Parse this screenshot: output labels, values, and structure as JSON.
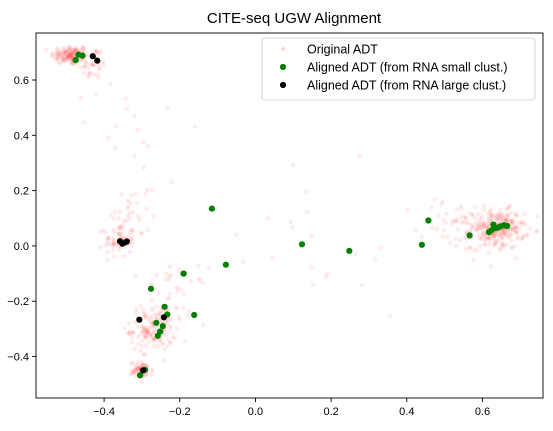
{
  "chart_data": {
    "type": "scatter",
    "title": "CITE-seq UGW Alignment",
    "xlabel": "",
    "ylabel": "",
    "xlim": [
      -0.58,
      0.76
    ],
    "ylim": [
      -0.55,
      0.77
    ],
    "xticks": [
      -0.4,
      -0.2,
      0.0,
      0.2,
      0.4,
      0.6
    ],
    "xtick_labels": [
      "−0.4",
      "−0.2",
      "0.0",
      "0.2",
      "0.4",
      "0.6"
    ],
    "yticks": [
      -0.4,
      -0.2,
      0.0,
      0.2,
      0.4,
      0.6
    ],
    "ytick_labels": [
      "−0.4",
      "−0.2",
      "0.0",
      "0.2",
      "0.4",
      "0.6"
    ],
    "grid": false,
    "legend_position": "top-right",
    "series": [
      {
        "name": "Original ADT",
        "color": "#ff0000",
        "alpha": 0.08,
        "marker": "small-dot",
        "clusters": [
          {
            "cx": -0.49,
            "cy": 0.69,
            "sx": 0.025,
            "sy": 0.018,
            "n": 140
          },
          {
            "cx": -0.43,
            "cy": 0.66,
            "sx": 0.02,
            "sy": 0.03,
            "n": 40
          },
          {
            "cx": -0.36,
            "cy": 0.02,
            "sx": 0.02,
            "sy": 0.03,
            "n": 70
          },
          {
            "cx": -0.33,
            "cy": 0.12,
            "sx": 0.025,
            "sy": 0.07,
            "n": 30
          },
          {
            "cx": -0.27,
            "cy": -0.3,
            "sx": 0.03,
            "sy": 0.04,
            "n": 150
          },
          {
            "cx": -0.21,
            "cy": -0.18,
            "sx": 0.04,
            "sy": 0.05,
            "n": 40
          },
          {
            "cx": -0.3,
            "cy": -0.45,
            "sx": 0.015,
            "sy": 0.015,
            "n": 70
          },
          {
            "cx": 0.64,
            "cy": 0.06,
            "sx": 0.035,
            "sy": 0.035,
            "n": 260
          },
          {
            "cx": 0.53,
            "cy": 0.08,
            "sx": 0.05,
            "sy": 0.05,
            "n": 50
          },
          {
            "cx": 0.1,
            "cy": 0.05,
            "sx": 0.2,
            "sy": 0.15,
            "n": 25
          },
          {
            "cx": -0.3,
            "cy": 0.45,
            "sx": 0.08,
            "sy": 0.12,
            "n": 15
          }
        ]
      },
      {
        "name": "Aligned ADT (from RNA small clust.)",
        "color": "#008000",
        "marker": "circle",
        "points": [
          [
            -0.475,
            0.672
          ],
          [
            -0.468,
            0.692
          ],
          [
            -0.457,
            0.688
          ],
          [
            -0.345,
            0.012
          ],
          [
            -0.276,
            -0.155
          ],
          [
            -0.262,
            -0.278
          ],
          [
            -0.258,
            -0.325
          ],
          [
            -0.252,
            -0.31
          ],
          [
            -0.245,
            -0.29
          ],
          [
            -0.24,
            -0.22
          ],
          [
            -0.233,
            -0.248
          ],
          [
            -0.19,
            -0.1
          ],
          [
            -0.19,
            -0.1
          ],
          [
            -0.162,
            -0.25
          ],
          [
            -0.115,
            0.135
          ],
          [
            -0.078,
            -0.068
          ],
          [
            0.123,
            0.006
          ],
          [
            0.248,
            -0.018
          ],
          [
            0.44,
            0.004
          ],
          [
            0.457,
            0.092
          ],
          [
            0.566,
            0.038
          ],
          [
            0.617,
            0.05
          ],
          [
            0.624,
            0.057
          ],
          [
            0.629,
            0.077
          ],
          [
            0.633,
            0.064
          ],
          [
            0.641,
            0.066
          ],
          [
            0.648,
            0.071
          ],
          [
            0.657,
            0.075
          ],
          [
            0.665,
            0.072
          ],
          [
            -0.292,
            -0.448
          ],
          [
            -0.305,
            -0.468
          ]
        ]
      },
      {
        "name": "Aligned ADT (from RNA large clust.)",
        "color": "#000000",
        "marker": "circle",
        "points": [
          [
            -0.43,
            0.686
          ],
          [
            -0.418,
            0.67
          ],
          [
            -0.358,
            0.017
          ],
          [
            -0.352,
            0.008
          ],
          [
            -0.34,
            0.016
          ],
          [
            -0.307,
            -0.267
          ],
          [
            -0.242,
            -0.258
          ],
          [
            -0.297,
            -0.45
          ]
        ]
      }
    ]
  }
}
